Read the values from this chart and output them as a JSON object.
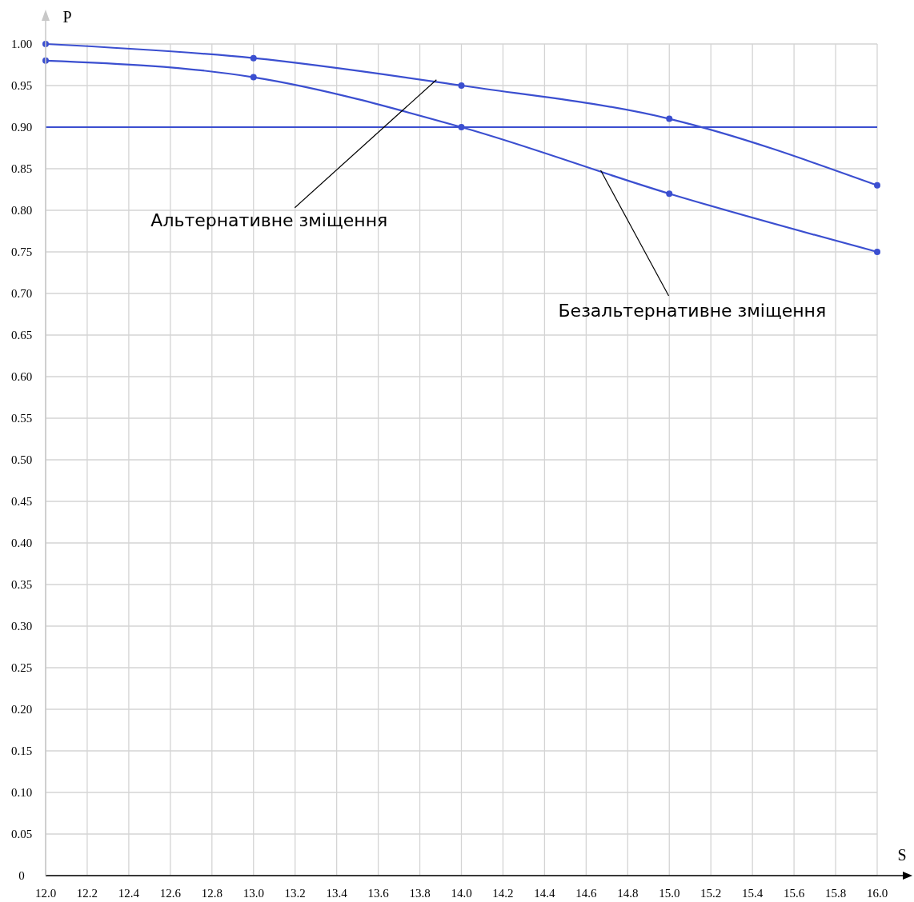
{
  "chart_data": {
    "type": "line",
    "xlabel": "S",
    "ylabel": "P",
    "x": [
      12,
      13,
      14,
      15,
      16
    ],
    "series": [
      {
        "color": "#3b4fd0",
        "values": [
          1.0,
          0.983,
          0.95,
          0.91,
          0.83
        ]
      },
      {
        "color": "#3b4fd0",
        "values": [
          0.98,
          0.96,
          0.9,
          0.82,
          0.75
        ]
      }
    ],
    "xlim": [
      12,
      16
    ],
    "xticks": [
      {
        "value": 12,
        "label": "12.0"
      },
      {
        "value": 12.2,
        "label": "12.2"
      },
      {
        "value": 12.4,
        "label": "12.4"
      },
      {
        "value": 12.6,
        "label": "12.6"
      },
      {
        "value": 12.8,
        "label": "12.8"
      },
      {
        "value": 13,
        "label": "13.0"
      },
      {
        "value": 13.2,
        "label": "13.2"
      },
      {
        "value": 13.4,
        "label": "13.4"
      },
      {
        "value": 13.6,
        "label": "13.6"
      },
      {
        "value": 13.8,
        "label": "13.8"
      },
      {
        "value": 14,
        "label": "14.0"
      },
      {
        "value": 14.2,
        "label": "14.2"
      },
      {
        "value": 14.4,
        "label": "14.4"
      },
      {
        "value": 14.6,
        "label": "14.6"
      },
      {
        "value": 14.8,
        "label": "14.8"
      },
      {
        "value": 15,
        "label": "15.0"
      },
      {
        "value": 15.2,
        "label": "15.2"
      },
      {
        "value": 15.4,
        "label": "15.4"
      },
      {
        "value": 15.6,
        "label": "15.6"
      },
      {
        "value": 15.8,
        "label": "15.8"
      },
      {
        "value": 16,
        "label": "16.0"
      }
    ],
    "ylim": [
      0,
      1
    ],
    "yticks": [
      0,
      {
        "value": 0.05,
        "label": "0.05"
      },
      {
        "value": 0.1,
        "label": "0.10"
      },
      {
        "value": 0.15,
        "label": "0.15"
      },
      {
        "value": 0.2,
        "label": "0.20"
      },
      {
        "value": 0.25,
        "label": "0.25"
      },
      {
        "value": 0.3,
        "label": "0.30"
      },
      {
        "value": 0.35,
        "label": "0.35"
      },
      {
        "value": 0.4,
        "label": "0.40"
      },
      {
        "value": 0.45,
        "label": "0.45"
      },
      {
        "value": 0.5,
        "label": "0.50"
      },
      {
        "value": 0.55,
        "label": "0.55"
      },
      {
        "value": 0.6,
        "label": "0.60"
      },
      {
        "value": 0.65,
        "label": "0.65"
      },
      {
        "value": 0.7,
        "label": "0.70"
      },
      {
        "value": 0.75,
        "label": "0.75"
      },
      {
        "value": 0.8,
        "label": "0.80"
      },
      {
        "value": 0.85,
        "label": "0.85"
      },
      {
        "value": 0.9,
        "label": "0.90"
      },
      {
        "value": 0.95,
        "label": "0.95"
      },
      {
        "value": 1,
        "label": "1.00"
      }
    ],
    "ref_lines": [
      {
        "axis": "y",
        "value": 0.9,
        "color": "#3b4fd0"
      }
    ],
    "annotations": [
      {
        "text": "Альтернативне зміщення",
        "x": 13.88,
        "y": 0.957
      },
      {
        "text": "Безальтернативне зміщення",
        "x": 14.67,
        "y": 0.848
      }
    ],
    "grid": true,
    "marker": "circle"
  }
}
